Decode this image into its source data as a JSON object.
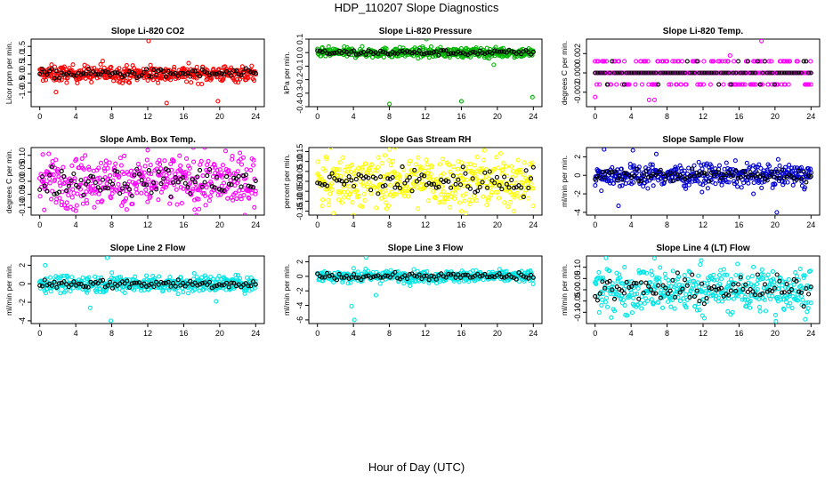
{
  "main_title": "HDP_110207  Slope Diagnostics",
  "x_axis_label": "Hour of Day (UTC)",
  "chart_data": [
    {
      "type": "scatter",
      "title": "Slope Li-820 CO2",
      "ylabel": "Licor ppm per min.",
      "color": "#ff0000",
      "xlim": [
        0,
        24
      ],
      "ylim": [
        -1.8,
        1.9
      ],
      "yticks": [
        "-1.0",
        "-0.5",
        "0.0",
        "0.5",
        "1.0",
        "1.5"
      ],
      "ytick_values": [
        -1.0,
        -0.5,
        0.0,
        0.5,
        1.0,
        1.5
      ],
      "xticks": [
        0,
        4,
        8,
        12,
        16,
        20,
        24
      ],
      "x_range": [
        0,
        24
      ],
      "spread": 0.22,
      "outliers": [
        [
          12.1,
          1.8
        ],
        [
          14.1,
          -1.6
        ],
        [
          19.8,
          -1.5
        ],
        [
          1.8,
          -1.0
        ],
        [
          7.0,
          0.7
        ]
      ]
    },
    {
      "type": "scatter",
      "title": "Slope Li-820 Pressure",
      "ylabel": "kPa per min.",
      "color": "#00b400",
      "xlim": [
        0,
        24
      ],
      "ylim": [
        -0.4,
        0.1
      ],
      "yticks": [
        "-0.4",
        "-0.3",
        "-0.2",
        "-0.1",
        "0.0",
        "0.1"
      ],
      "ytick_values": [
        -0.4,
        -0.3,
        -0.2,
        -0.1,
        0.0,
        0.1
      ],
      "xticks": [
        0,
        4,
        8,
        12,
        16,
        20,
        24
      ],
      "x_range": [
        0,
        24
      ],
      "spread": 0.018,
      "outliers": [
        [
          8.0,
          -0.38
        ],
        [
          16.0,
          -0.36
        ],
        [
          23.9,
          -0.33
        ],
        [
          19.6,
          -0.09
        ],
        [
          12.1,
          0.1
        ]
      ]
    },
    {
      "type": "scatter",
      "title": "Slope Li-820 Temp.",
      "ylabel": "degrees C per min.",
      "color": "#ff00ff",
      "xlim": [
        0,
        24
      ],
      "ylim": [
        -0.0035,
        0.0035
      ],
      "yticks": [
        "-0.002",
        "0.000",
        "0.002"
      ],
      "ytick_values": [
        -0.002,
        0.0,
        0.002
      ],
      "xticks": [
        0,
        4,
        8,
        12,
        16,
        20,
        24
      ],
      "x_range": [
        0,
        24
      ],
      "levels": [
        0.0012,
        0.0,
        -0.0012
      ],
      "outliers": [
        [
          18.5,
          0.0033
        ],
        [
          6.6,
          -0.0028
        ],
        [
          6.0,
          -0.0028
        ],
        [
          15.0,
          0.0018
        ],
        [
          0.0,
          -0.0025
        ]
      ]
    },
    {
      "type": "scatter",
      "title": "Slope Amb. Box Temp.",
      "ylabel": "degrees C per min.",
      "color": "#ff00ff",
      "xlim": [
        0,
        24
      ],
      "ylim": [
        -0.13,
        0.13
      ],
      "yticks": [
        "-0.15",
        "-0.10",
        "-0.05",
        "0.00",
        "0.05",
        "0.10"
      ],
      "ytick_values": [
        -0.15,
        -0.1,
        -0.05,
        0.0,
        0.05,
        0.1
      ],
      "xticks": [
        0,
        4,
        8,
        12,
        16,
        20,
        24
      ],
      "x_range": [
        0,
        24
      ],
      "spread": 0.05,
      "outliers": [
        [
          17.4,
          -0.13
        ],
        [
          12.0,
          0.12
        ],
        [
          0.5,
          -0.11
        ]
      ]
    },
    {
      "type": "scatter",
      "title": "Slope Gas Stream RH",
      "ylabel": "percent per min.",
      "color": "#ffff00",
      "xlim": [
        0,
        24
      ],
      "ylim": [
        -0.17,
        0.17
      ],
      "yticks": [
        "-0.15",
        "-0.10",
        "-0.05",
        "0.00",
        "0.05",
        "0.10",
        "0.15"
      ],
      "ytick_values": [
        -0.15,
        -0.1,
        -0.05,
        0.0,
        0.05,
        0.1,
        0.15
      ],
      "xticks": [
        0,
        4,
        8,
        12,
        16,
        20,
        24
      ],
      "x_range": [
        0,
        24
      ],
      "spread": 0.065,
      "outliers": [
        [
          1.8,
          -0.16
        ],
        [
          8.0,
          0.16
        ],
        [
          16.0,
          -0.15
        ]
      ]
    },
    {
      "type": "scatter",
      "title": "Slope Sample Flow",
      "ylabel": "ml/min per min.",
      "color": "#0000cd",
      "xlim": [
        0,
        24
      ],
      "ylim": [
        -4.3,
        3.0
      ],
      "yticks": [
        "-4",
        "-2",
        "0",
        "2"
      ],
      "ytick_values": [
        -4,
        -2,
        0,
        2
      ],
      "xticks": [
        0,
        4,
        8,
        12,
        16,
        20,
        24
      ],
      "x_range": [
        0,
        24
      ],
      "spread": 0.6,
      "outliers": [
        [
          1.0,
          2.8
        ],
        [
          4.2,
          2.7
        ],
        [
          2.6,
          -3.3
        ],
        [
          20.2,
          -4.0
        ],
        [
          6.8,
          2.3
        ],
        [
          17.6,
          -2.0
        ]
      ]
    },
    {
      "type": "scatter",
      "title": "Slope Line 2 Flow",
      "ylabel": "ml/min per min.",
      "color": "#00e5e5",
      "xlim": [
        0,
        24
      ],
      "ylim": [
        -4.3,
        3.0
      ],
      "yticks": [
        "-4",
        "-2",
        "0",
        "2"
      ],
      "ytick_values": [
        -4,
        -2,
        0,
        2
      ],
      "xticks": [
        0,
        4,
        8,
        12,
        16,
        20,
        24
      ],
      "x_range": [
        0,
        24
      ],
      "spread": 0.45,
      "outliers": [
        [
          7.9,
          -4.0
        ],
        [
          7.5,
          2.8
        ],
        [
          5.6,
          -2.6
        ],
        [
          19.6,
          -1.9
        ],
        [
          0.6,
          2.0
        ]
      ]
    },
    {
      "type": "scatter",
      "title": "Slope Line 3 Flow",
      "ylabel": "ml/min per min.",
      "color": "#00e5e5",
      "xlim": [
        0,
        24
      ],
      "ylim": [
        -6.5,
        2.8
      ],
      "yticks": [
        "-6",
        "-4",
        "-2",
        "0",
        "2"
      ],
      "ytick_values": [
        -6,
        -4,
        -2,
        0,
        2
      ],
      "xticks": [
        0,
        4,
        8,
        12,
        16,
        20,
        24
      ],
      "x_range": [
        0,
        24
      ],
      "spread": 0.4,
      "outliers": [
        [
          4.1,
          -6.0
        ],
        [
          3.8,
          -4.1
        ],
        [
          5.4,
          2.6
        ],
        [
          6.5,
          -2.6
        ],
        [
          10.3,
          -1.3
        ]
      ]
    },
    {
      "type": "scatter",
      "title": "Slope Line 4 (LT) Flow",
      "ylabel": "ml/min per min.",
      "color": "#00e5e5",
      "xlim": [
        0,
        24
      ],
      "ylim": [
        -0.15,
        0.15
      ],
      "yticks": [
        "-0.10",
        "-0.05",
        "0.00",
        "0.05",
        "0.10"
      ],
      "ytick_values": [
        -0.1,
        -0.05,
        0.0,
        0.05,
        0.1
      ],
      "xticks": [
        0,
        4,
        8,
        12,
        16,
        20,
        24
      ],
      "x_range": [
        0,
        24
      ],
      "spread": 0.05,
      "outliers": [
        [
          20.1,
          -0.14
        ],
        [
          6.6,
          0.14
        ],
        [
          11.8,
          0.13
        ],
        [
          7.5,
          -0.08
        ]
      ]
    }
  ]
}
